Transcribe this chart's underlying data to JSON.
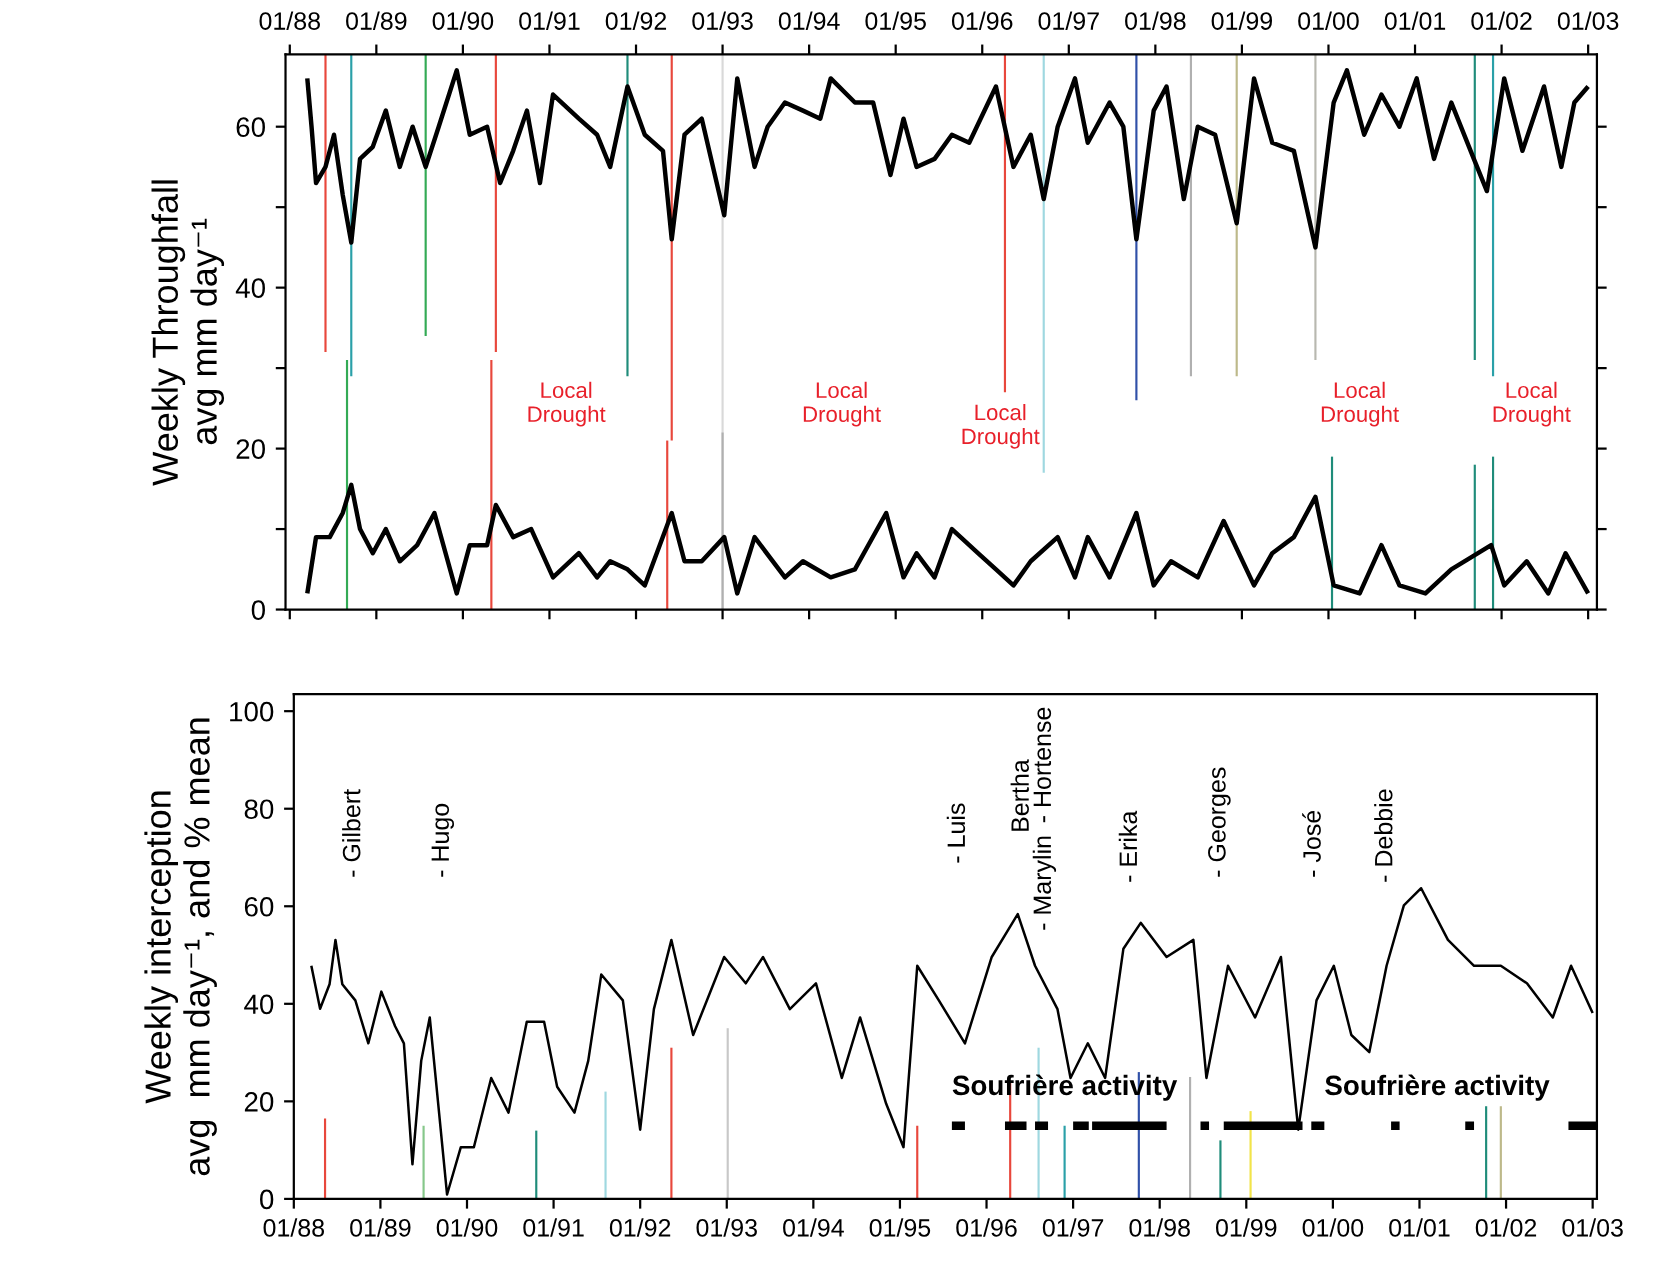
{
  "chart_data": [
    {
      "type": "line",
      "ylabel": "Weekly Throughfall\navg mm day⁻¹",
      "xlim": [
        "1987-12-14",
        "2003-02-07"
      ],
      "ylim": [
        0,
        69
      ],
      "xticks": [
        {
          "value": "1988-01",
          "label": "01/88"
        },
        {
          "value": "1989-01",
          "label": "01/89"
        },
        {
          "value": "1990-01",
          "label": "01/90"
        },
        {
          "value": "1991-01",
          "label": "01/91"
        },
        {
          "value": "1992-01",
          "label": "01/92"
        },
        {
          "value": "1993-01",
          "label": "01/93"
        },
        {
          "value": "1994-01",
          "label": "01/94"
        },
        {
          "value": "1995-01",
          "label": "01/95"
        },
        {
          "value": "1996-01",
          "label": "01/96"
        },
        {
          "value": "1997-01",
          "label": "01/97"
        },
        {
          "value": "1998-01",
          "label": "01/98"
        },
        {
          "value": "1999-01",
          "label": "01/99"
        },
        {
          "value": "2000-01",
          "label": "01/00"
        },
        {
          "value": "2001-01",
          "label": "01/01"
        },
        {
          "value": "2002-01",
          "label": "01/02"
        },
        {
          "value": "2003-01",
          "label": "01/03"
        }
      ],
      "yticks": [
        0,
        {
          "value": 10,
          "label": null
        },
        20,
        {
          "value": 30,
          "label": null
        },
        40,
        {
          "value": 50,
          "label": null
        },
        60
      ],
      "grid": false,
      "annotations": [
        "Local\nDrought",
        "Local\nDrought",
        "Local\nDrought",
        "Local\nDrought",
        "Local\nDrought"
      ],
      "series": [
        {
          "type": "bar",
          "x": [
            "1988-05-31",
            "1988-09-17",
            "1989-07-28",
            "1990-05-20",
            "1991-11-26",
            "1992-05-31",
            "1993-01-01",
            "1996-04-06",
            "1996-09-17",
            "1997-10-13",
            "1998-05-31",
            "1998-12-10",
            "1999-11-07",
            "2001-09-10",
            "2001-11-26"
          ],
          "base": [
            32,
            29,
            34,
            32,
            29,
            21,
            0,
            27,
            17,
            26,
            29,
            29,
            31,
            31,
            29
          ],
          "values": [
            37,
            40,
            35,
            37,
            40,
            48,
            69,
            42,
            52,
            43,
            40,
            40,
            38,
            38,
            40
          ],
          "colors": [
            "#e8473c",
            "#2aa0a8",
            "#33aa55",
            "#e8473c",
            "#1f8c7a",
            "#e8473c",
            "#d9d9d9",
            "#e8473c",
            "#9fd8e0",
            "#3050a8",
            "#b0b0b0",
            "#bdb98a",
            "#b8b8b0",
            "#1f8c7a",
            "#2aa0a8"
          ]
        },
        {
          "type": "bar",
          "x": [
            "1988-08-30",
            "1990-05-01",
            "1992-05-12",
            "1993-01-01",
            "2000-01-16",
            "2001-09-10",
            "2001-11-26"
          ],
          "base": [
            0,
            0,
            0,
            0,
            0,
            0,
            0
          ],
          "values": [
            31,
            31,
            21,
            22,
            19,
            18,
            19
          ],
          "colors": [
            "#33aa55",
            "#e8473c",
            "#e8473c",
            "#b0b0b0",
            "#1f8c7a",
            "#1f8c7a",
            "#1f8c7a"
          ]
        },
        {
          "color": "#000000",
          "x": [
            "1988-03-15",
            "1988-04-02",
            "1988-04-21",
            "1988-05-31",
            "1988-07-06",
            "1988-08-12",
            "1988-09-17",
            "1988-10-24",
            "1988-12-17",
            "1989-02-10",
            "1989-04-10",
            "1989-06-03",
            "1989-07-28",
            "1989-09-21",
            "1989-12-06",
            "1990-01-30",
            "1990-04-13",
            "1990-06-07",
            "1990-08-01",
            "1990-09-28",
            "1990-11-22",
            "1991-01-16",
            "1991-05-05",
            "1991-07-21",
            "1991-09-14",
            "1991-11-26",
            "1992-02-07",
            "1992-04-24",
            "1992-05-31",
            "1992-07-24",
            "1992-10-05",
            "1993-01-08",
            "1993-03-04",
            "1993-05-16",
            "1993-07-10",
            "1993-09-21",
            "1993-12-06",
            "1994-02-17",
            "1994-04-02",
            "1994-07-13",
            "1994-09-28",
            "1994-12-10",
            "1995-02-03",
            "1995-03-30",
            "1995-06-14",
            "1995-08-26",
            "1995-11-07",
            "1996-02-28",
            "1996-05-12",
            "1996-07-24",
            "1996-09-17",
            "1996-11-15",
            "1997-01-27",
            "1997-03-22",
            "1997-06-22",
            "1997-08-19",
            "1997-10-13",
            "1997-12-25",
            "1998-02-17",
            "1998-05-01",
            "1998-06-29",
            "1998-09-10",
            "1998-12-10",
            "1999-02-21",
            "1999-05-09",
            "1999-08-08",
            "1999-11-07",
            "2000-01-23",
            "2000-03-19",
            "2000-05-31",
            "2000-08-12",
            "2000-10-27",
            "2001-01-08",
            "2001-03-22",
            "2001-06-03",
            "2001-09-06",
            "2001-10-31",
            "2002-01-12",
            "2002-03-30",
            "2002-06-29",
            "2002-09-10",
            "2002-11-04",
            "2003-01-01"
          ],
          "values": [
            66,
            60,
            53,
            55,
            59,
            51.5,
            45.6,
            56,
            57.5,
            62,
            55,
            60,
            55,
            60,
            67,
            59,
            60,
            53,
            57,
            62,
            53,
            64,
            61,
            59,
            55,
            65,
            59,
            57,
            46,
            59,
            61,
            49,
            66,
            55,
            60,
            63,
            62,
            61,
            66,
            63,
            63,
            54,
            61,
            55,
            56,
            59,
            58,
            65,
            55,
            59,
            51,
            60,
            66,
            58,
            63,
            60,
            46,
            62,
            65,
            51,
            60,
            59,
            48,
            66,
            58,
            57,
            45,
            63,
            67,
            59,
            64,
            60,
            66,
            56,
            63,
            56,
            52,
            66,
            57,
            65,
            55,
            63,
            65
          ]
        },
        {
          "color": "#000000",
          "x": [
            "1988-03-15",
            "1988-04-21",
            "1988-06-18",
            "1988-08-12",
            "1988-09-17",
            "1988-10-24",
            "1988-12-17",
            "1989-02-10",
            "1989-04-10",
            "1989-06-22",
            "1989-09-03",
            "1989-12-06",
            "1990-01-30",
            "1990-04-13",
            "1990-05-20",
            "1990-08-01",
            "1990-10-16",
            "1991-01-16",
            "1991-05-05",
            "1991-07-21",
            "1991-09-14",
            "1991-11-26",
            "1992-02-07",
            "1992-05-31",
            "1992-07-24",
            "1992-10-05",
            "1993-01-08",
            "1993-03-04",
            "1993-05-16",
            "1993-09-21",
            "1993-12-06",
            "1994-04-02",
            "1994-07-13",
            "1994-11-22",
            "1995-02-03",
            "1995-03-30",
            "1995-06-14",
            "1995-08-26",
            "1995-12-14",
            "1996-02-28",
            "1996-05-12",
            "1996-07-24",
            "1996-11-15",
            "1997-01-27",
            "1997-03-22",
            "1997-06-22",
            "1997-10-13",
            "1997-12-25",
            "1998-03-08",
            "1998-06-29",
            "1998-10-16",
            "1999-02-21",
            "1999-05-09",
            "1999-08-08",
            "1999-11-07",
            "2000-01-23",
            "2000-05-12",
            "2000-08-12",
            "2000-10-27",
            "2001-02-14",
            "2001-06-03",
            "2001-11-18",
            "2002-01-12",
            "2002-04-17",
            "2002-07-17",
            "2002-09-28",
            "2003-01-01"
          ],
          "values": [
            2,
            9,
            9,
            12,
            15.5,
            10,
            7,
            10,
            6,
            8,
            12,
            2,
            8,
            8,
            13,
            9,
            10,
            4,
            7,
            4,
            6,
            5,
            3,
            12,
            6,
            6,
            9,
            2,
            9,
            4,
            6,
            4,
            5,
            12,
            4,
            7,
            4,
            10,
            7,
            5,
            3,
            6,
            9,
            4,
            9,
            4,
            12,
            3,
            6,
            4,
            11,
            3,
            7,
            9,
            14,
            3,
            2,
            8,
            3,
            2,
            5,
            8,
            3,
            6,
            2,
            7,
            2
          ]
        }
      ]
    },
    {
      "type": "line",
      "ylabel": "Weekly interception\navg  mm day⁻¹, and % mean",
      "xlim": [
        "1988-01-01",
        "2003-01-19"
      ],
      "ylim": [
        0,
        103.5
      ],
      "xticks": [
        {
          "value": "1988-01",
          "label": "01/88"
        },
        {
          "value": "1989-01",
          "label": "01/89"
        },
        {
          "value": "1990-01",
          "label": "01/90"
        },
        {
          "value": "1991-01",
          "label": "01/91"
        },
        {
          "value": "1992-01",
          "label": "01/92"
        },
        {
          "value": "1993-01",
          "label": "01/93"
        },
        {
          "value": "1994-01",
          "label": "01/94"
        },
        {
          "value": "1995-01",
          "label": "01/95"
        },
        {
          "value": "1996-01",
          "label": "01/96"
        },
        {
          "value": "1997-01",
          "label": "01/97"
        },
        {
          "value": "1998-01",
          "label": "01/98"
        },
        {
          "value": "1999-01",
          "label": "01/99"
        },
        {
          "value": "2000-01",
          "label": "01/00"
        },
        {
          "value": "2001-01",
          "label": "01/01"
        },
        {
          "value": "2002-01",
          "label": "01/02"
        },
        {
          "value": "2003-01",
          "label": "01/03"
        }
      ],
      "yticks": [
        0,
        20,
        40,
        60,
        80,
        100
      ],
      "grid": false,
      "annotations": [
        "- Gilbert",
        "- Hugo",
        "- Luis",
        "Bertha",
        "- Hortense",
        "- Marylin",
        "- Erika",
        "- Georges",
        "- José",
        "- Debbie",
        {
          "text": "Soufrière activity",
          "x": "1995-08-08",
          "y": 15
        },
        {
          "text": "Soufrière activity",
          "x": "1999-11-26",
          "y": 15
        }
      ],
      "series": [
        {
          "type": "bar",
          "x": [
            "1988-05-12",
            "1989-07-02",
            "1990-10-20",
            "1991-08-08",
            "1992-05-12",
            "1993-01-05",
            "1995-03-15",
            "1996-04-10",
            "1996-08-08",
            "1996-11-26",
            "1997-10-05",
            "1998-05-09",
            "1998-09-14",
            "1999-01-19",
            "2001-10-09",
            "2001-12-10"
          ],
          "base": [
            0,
            0,
            0,
            0,
            0,
            0,
            0,
            0,
            0,
            0,
            0,
            0,
            0,
            0,
            0,
            0
          ],
          "values": [
            16.5,
            15,
            14,
            22,
            31,
            35,
            15,
            24,
            31,
            15,
            26,
            25,
            12,
            18,
            19,
            19
          ],
          "colors": [
            "#e8473c",
            "#86c78a",
            "#1f8c7a",
            "#9fd8e0",
            "#e8473c",
            "#c8c8c8",
            "#e8473c",
            "#e8473c",
            "#9fd8e0",
            "#2aa0a8",
            "#3050a8",
            "#b0b0b0",
            "#1f8c7a",
            "#f2e44a",
            "#1f8c7a",
            "#bdb98a"
          ]
        },
        {
          "color": "#000000",
          "x": [
            "1988-03-15",
            "1988-04-21",
            "1988-05-31",
            "1988-06-25",
            "1988-07-24",
            "1988-09-17",
            "1988-11-11",
            "1989-01-05",
            "1989-03-04",
            "1989-04-10",
            "1989-05-16",
            "1989-06-22",
            "1989-07-28",
            "1989-10-09",
            "1989-12-06",
            "1990-01-30",
            "1990-04-13",
            "1990-06-25",
            "1990-09-10",
            "1990-11-22",
            "1991-01-16",
            "1991-03-30",
            "1991-05-27",
            "1991-07-21",
            "1991-10-20",
            "1992-01-01",
            "1992-02-28",
            "1992-05-12",
            "1992-08-12",
            "1992-12-21",
            "1993-03-22",
            "1993-06-03",
            "1993-09-24",
            "1994-01-12",
            "1994-05-01",
            "1994-07-17",
            "1994-11-04",
            "1995-01-16",
            "1995-03-15",
            "1995-06-14",
            "1995-10-02",
            "1996-01-23",
            "1996-05-12",
            "1996-07-24",
            "1996-10-27",
            "1996-12-21",
            "1997-03-04",
            "1997-05-16",
            "1997-08-01",
            "1997-10-13",
            "1998-01-30",
            "1998-05-23",
            "1998-07-17",
            "1998-10-16",
            "1999-02-07",
            "1999-05-27",
            "1999-08-08",
            "1999-10-24",
            "2000-01-05",
            "2000-03-19",
            "2000-06-03",
            "2000-08-15",
            "2000-10-27",
            "2001-01-08",
            "2001-05-01",
            "2001-08-19",
            "2001-12-10",
            "2002-03-30",
            "2002-07-17",
            "2002-10-02",
            "2003-01-01"
          ],
          "values": [
            47.8,
            39,
            44,
            53.1,
            44,
            40.7,
            31.9,
            42.5,
            35.4,
            31.9,
            7.1,
            28.3,
            37.2,
            0.9,
            10.6,
            10.6,
            24.8,
            17.7,
            36.3,
            36.3,
            23,
            17.7,
            28.3,
            46,
            40.7,
            14.2,
            38.9,
            53.1,
            33.6,
            49.6,
            44.2,
            49.6,
            38.9,
            44.2,
            24.8,
            37.2,
            19.5,
            10.6,
            47.8,
            40.7,
            31.9,
            49.6,
            58.4,
            47.8,
            38.9,
            24.8,
            31.9,
            24.8,
            51.3,
            56.6,
            49.6,
            53.1,
            24.8,
            47.8,
            37.2,
            49.6,
            14.2,
            40.7,
            47.8,
            33.6,
            30.1,
            47.8,
            60.2,
            63.7,
            53.1,
            47.8,
            47.8,
            44.2,
            37.2,
            47.8,
            38.1
          ]
        },
        {
          "color": "#000000",
          "x": [
            "1995-08-08",
            "1995-10-02",
            null,
            "1996-03-19",
            "1996-06-18",
            null,
            "1996-07-24",
            "1996-09-17",
            null,
            "1997-01-01",
            "1997-03-08",
            null,
            "1997-03-22",
            "1998-01-30",
            null,
            "1998-06-22",
            "1998-07-28",
            null,
            "1998-09-28",
            "1999-08-26",
            null,
            "1999-10-02",
            "1999-11-26",
            null,
            "2000-09-03",
            "2000-10-09",
            null,
            "2001-07-13",
            "2001-08-19",
            null,
            "2002-09-21",
            "2003-01-19"
          ],
          "values": [
            15,
            15,
            null,
            15,
            15,
            null,
            15,
            15,
            null,
            15,
            15,
            null,
            15,
            15,
            null,
            15,
            15,
            null,
            15,
            15,
            null,
            15,
            15,
            null,
            15,
            15,
            null,
            15,
            15,
            null,
            15,
            15
          ]
        }
      ]
    }
  ]
}
